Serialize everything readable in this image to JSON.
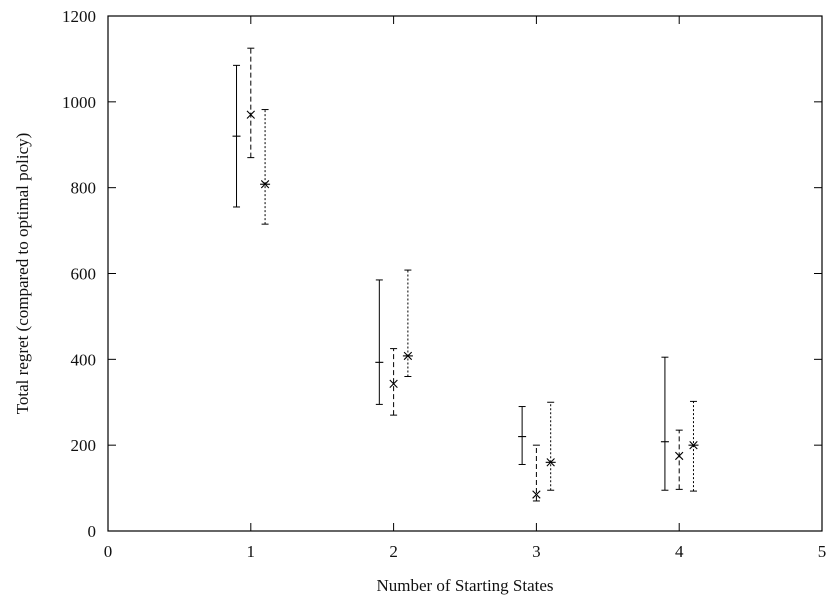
{
  "chart_data": {
    "type": "scatter",
    "subtype": "error-bars",
    "xlabel": "Number of Starting States",
    "ylabel": "Total regret (compared to optimal policy)",
    "xlim": [
      0,
      5
    ],
    "ylim": [
      0,
      1200
    ],
    "x_ticks": [
      "0",
      "1",
      "2",
      "3",
      "4",
      "5"
    ],
    "y_ticks": [
      "0",
      "200",
      "400",
      "600",
      "800",
      "1000",
      "1200"
    ],
    "grid": false,
    "legend": "none",
    "series": [
      {
        "marker": "tick",
        "line_style": "solid",
        "points": [
          {
            "x": 0.9,
            "y": 920,
            "low": 755,
            "high": 1085
          },
          {
            "x": 1.9,
            "y": 393,
            "low": 295,
            "high": 585
          },
          {
            "x": 2.9,
            "y": 220,
            "low": 155,
            "high": 290
          },
          {
            "x": 3.9,
            "y": 208,
            "low": 95,
            "high": 405
          }
        ]
      },
      {
        "marker": "x",
        "line_style": "dashed",
        "points": [
          {
            "x": 1.0,
            "y": 970,
            "low": 870,
            "high": 1125
          },
          {
            "x": 2.0,
            "y": 343,
            "low": 270,
            "high": 425
          },
          {
            "x": 3.0,
            "y": 85,
            "low": 70,
            "high": 200
          },
          {
            "x": 4.0,
            "y": 175,
            "low": 97,
            "high": 235
          }
        ]
      },
      {
        "marker": "star",
        "line_style": "dotted",
        "points": [
          {
            "x": 1.1,
            "y": 808,
            "low": 715,
            "high": 982
          },
          {
            "x": 2.1,
            "y": 408,
            "low": 360,
            "high": 608
          },
          {
            "x": 3.1,
            "y": 160,
            "low": 95,
            "high": 300
          },
          {
            "x": 4.1,
            "y": 200,
            "low": 93,
            "high": 302
          }
        ]
      }
    ]
  }
}
